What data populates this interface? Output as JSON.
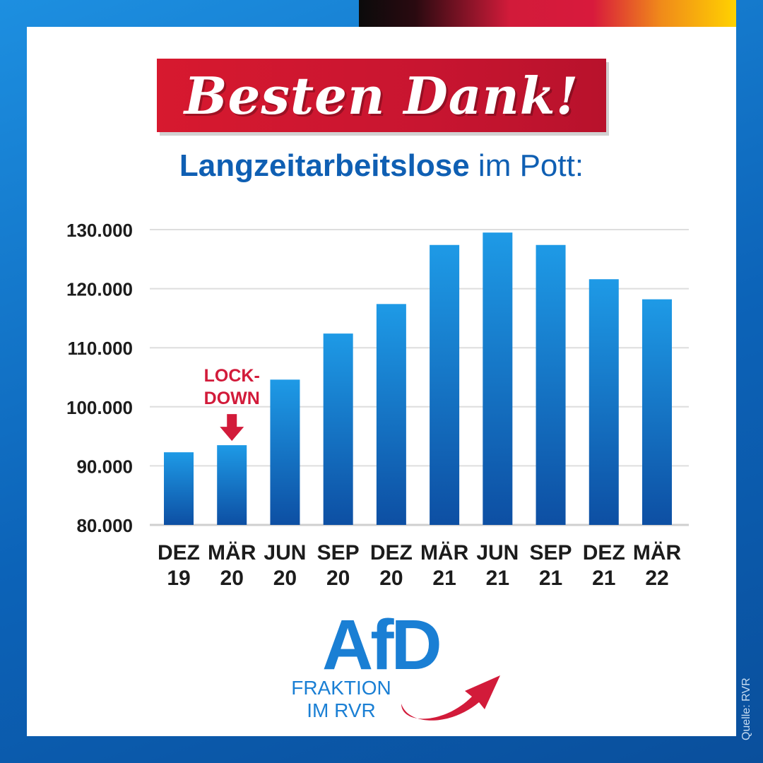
{
  "headline": "Besten Dank!",
  "subtitle": {
    "bold": "Langzeitarbeitslose",
    "rest": "im Pott:"
  },
  "colors": {
    "brand_blue": "#0f5fb3",
    "accent_red": "#d21b3a",
    "bar_top": "#1e9ae6",
    "bar_bottom": "#0d4fa3"
  },
  "chart_data": {
    "type": "bar",
    "title": "",
    "xlabel": "",
    "ylabel": "",
    "categories": [
      [
        "DEZ",
        "19"
      ],
      [
        "MÄR",
        "20"
      ],
      [
        "JUN",
        "20"
      ],
      [
        "SEP",
        "20"
      ],
      [
        "DEZ",
        "20"
      ],
      [
        "MÄR",
        "21"
      ],
      [
        "JUN",
        "21"
      ],
      [
        "SEP",
        "21"
      ],
      [
        "DEZ",
        "21"
      ],
      [
        "MÄR",
        "22"
      ]
    ],
    "values": [
      92300,
      93500,
      104600,
      112400,
      117400,
      127400,
      129500,
      127400,
      121600,
      118200
    ],
    "ylim": [
      80000,
      130000
    ],
    "yticks": [
      80000,
      90000,
      100000,
      110000,
      120000,
      130000
    ],
    "ytick_labels": [
      "80.000",
      "90.000",
      "100.000",
      "110.000",
      "120.000",
      "130.000"
    ],
    "grid": true,
    "annotation": {
      "category_index": 1,
      "lines": [
        "LOCK-",
        "DOWN"
      ]
    }
  },
  "logo": {
    "mark": "AfD",
    "sub_lines": [
      "FRAKTION",
      "IM RVR"
    ]
  },
  "source": "Quelle: RVR"
}
